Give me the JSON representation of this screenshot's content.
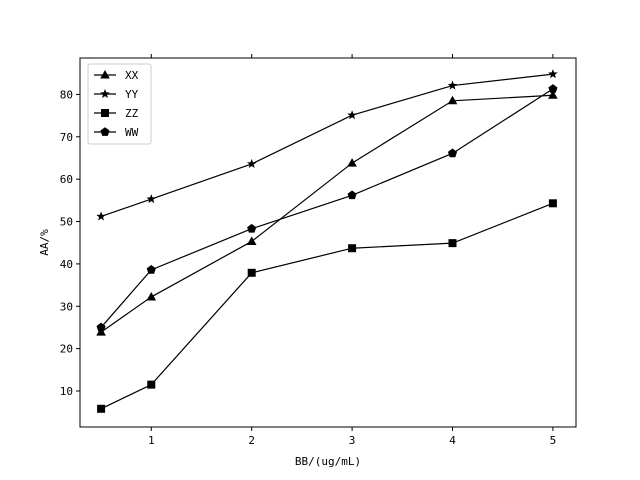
{
  "chart_data": {
    "type": "line",
    "xlabel": "BB/(ug/mL)",
    "ylabel": "AA/%",
    "x": [
      0.5,
      1,
      2,
      3,
      4,
      5
    ],
    "xticks": [
      "1",
      "2",
      "3",
      "4",
      "5"
    ],
    "xtick_values": [
      1,
      2,
      3,
      4,
      5
    ],
    "xlim": [
      0.29,
      5.23
    ],
    "yticks": [
      "10",
      "20",
      "30",
      "40",
      "50",
      "60",
      "70",
      "80"
    ],
    "ytick_values": [
      10,
      20,
      30,
      40,
      50,
      60,
      70,
      80
    ],
    "ylim": [
      1.5,
      88.6
    ],
    "grid": false,
    "legend_position": "top-left",
    "series": [
      {
        "name": "XX",
        "marker": "triangle",
        "values": [
          23.9,
          32.2,
          45.3,
          63.8,
          78.5,
          79.8
        ]
      },
      {
        "name": "YY",
        "marker": "star",
        "values": [
          51.2,
          55.3,
          63.6,
          75.1,
          82.1,
          84.8
        ]
      },
      {
        "name": "ZZ",
        "marker": "square",
        "values": [
          5.8,
          11.5,
          37.9,
          43.7,
          44.9,
          54.3
        ]
      },
      {
        "name": "WW",
        "marker": "pentagon",
        "values": [
          25.0,
          38.6,
          48.3,
          56.2,
          66.1,
          81.3
        ]
      }
    ],
    "line_color": "#000000"
  }
}
